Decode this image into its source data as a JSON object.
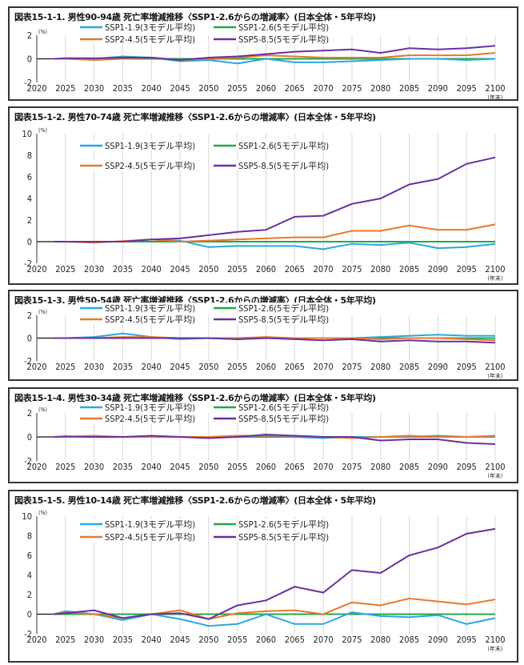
{
  "colors": {
    "SSP1-1.9": "#29a8e0",
    "SSP1-2.6": "#22a84a",
    "SSP2-4.5": "#e8782a",
    "SSP5-8.5": "#6b2fa0"
  },
  "legend_labels": [
    "SSP1-1.9(3モデル平均)",
    "SSP1-2.6(5モデル平均)",
    "SSP2-4.5(5モデル平均)",
    "SSP5-8.5(5モデル平均)"
  ],
  "y_unit": "(%)",
  "x_unit": "(年末)",
  "chart_data": [
    {
      "type": "line",
      "title": "図表15-1-1. 男性90-94歳 死亡率増減推移〈SSP1-2.6からの増減率〉(日本全体・5年平均)",
      "ylim": [
        -2,
        2
      ],
      "yticks": [
        -2,
        0,
        2
      ],
      "xlim": [
        2020,
        2100
      ],
      "xticks": [
        2020,
        2025,
        2030,
        2035,
        2040,
        2045,
        2050,
        2055,
        2060,
        2065,
        2070,
        2075,
        2080,
        2085,
        2090,
        2095,
        2100
      ],
      "grid": "vertical",
      "legend": "top",
      "x": [
        2023,
        2025,
        2030,
        2035,
        2040,
        2045,
        2050,
        2055,
        2060,
        2065,
        2070,
        2075,
        2080,
        2085,
        2090,
        2095,
        2100
      ],
      "series": [
        {
          "name": "SSP1-1.9(3モデル平均)",
          "values": [
            0,
            0,
            0,
            0.2,
            0.1,
            -0.2,
            -0.1,
            -0.4,
            0,
            -0.3,
            -0.3,
            -0.2,
            -0.1,
            0,
            0,
            -0.1,
            0
          ]
        },
        {
          "name": "SSP1-2.6(5モデル平均)",
          "values": [
            0,
            0,
            0,
            0,
            0,
            0,
            0,
            0,
            0,
            0,
            0,
            0,
            0,
            0,
            0,
            0,
            0
          ]
        },
        {
          "name": "SSP2-4.5(5モデル平均)",
          "values": [
            0,
            0,
            -0.1,
            0,
            0.1,
            -0.1,
            0,
            0.1,
            0.3,
            0.2,
            0.1,
            0.1,
            0.1,
            0.3,
            0.3,
            0.3,
            0.5
          ]
        },
        {
          "name": "SSP5-8.5(5モデル平均)",
          "values": [
            0,
            0.05,
            0.05,
            0.1,
            0.1,
            -0.1,
            0.1,
            0.2,
            0.4,
            0.6,
            0.7,
            0.8,
            0.5,
            0.9,
            0.8,
            0.9,
            1.1
          ]
        }
      ]
    },
    {
      "type": "line",
      "title": "図表15-1-2. 男性70-74歳 死亡率増減推移〈SSP1-2.6からの増減率〉(日本全体・5年平均)",
      "ylim": [
        -2,
        10
      ],
      "yticks": [
        -2,
        0,
        2,
        4,
        6,
        8,
        10
      ],
      "xlim": [
        2020,
        2100
      ],
      "xticks": [
        2020,
        2025,
        2030,
        2035,
        2040,
        2045,
        2050,
        2055,
        2060,
        2065,
        2070,
        2075,
        2080,
        2085,
        2090,
        2095,
        2100
      ],
      "grid": "vertical",
      "legend": "top-left",
      "x": [
        2023,
        2025,
        2030,
        2035,
        2040,
        2045,
        2050,
        2055,
        2060,
        2065,
        2070,
        2075,
        2080,
        2085,
        2090,
        2095,
        2100
      ],
      "series": [
        {
          "name": "SSP1-1.9(3モデル平均)",
          "values": [
            0,
            0,
            0,
            0,
            0.2,
            0.1,
            -0.5,
            -0.4,
            -0.4,
            -0.4,
            -0.7,
            -0.2,
            -0.3,
            -0.1,
            -0.6,
            -0.5,
            -0.2
          ]
        },
        {
          "name": "SSP1-2.6(5モデル平均)",
          "values": [
            0,
            0,
            0,
            0,
            0,
            0,
            0,
            0,
            0,
            0,
            0,
            0,
            0,
            0,
            0,
            0,
            0
          ]
        },
        {
          "name": "SSP2-4.5(5モデル平均)",
          "values": [
            0,
            0,
            -0.1,
            0.05,
            0.2,
            0,
            0.1,
            0.2,
            0.3,
            0.4,
            0.4,
            1.0,
            1.0,
            1.5,
            1.1,
            1.1,
            1.6
          ]
        },
        {
          "name": "SSP5-8.5(5モデル平均)",
          "values": [
            0,
            0,
            0,
            0,
            0.2,
            0.3,
            0.6,
            0.9,
            1.1,
            2.3,
            2.4,
            3.5,
            4.0,
            5.3,
            5.8,
            7.2,
            7.8
          ]
        }
      ]
    },
    {
      "type": "line",
      "title": "図表15-1-3. 男性50-54歳 死亡率増減推移〈SSP1-2.6からの増減率〉(日本全体・5年平均)",
      "ylim": [
        -2,
        2
      ],
      "yticks": [
        -2,
        0,
        2
      ],
      "xlim": [
        2020,
        2100
      ],
      "xticks": [
        2020,
        2025,
        2030,
        2035,
        2040,
        2045,
        2050,
        2055,
        2060,
        2065,
        2070,
        2075,
        2080,
        2085,
        2090,
        2095,
        2100
      ],
      "grid": "vertical",
      "legend": "top",
      "x": [
        2023,
        2025,
        2030,
        2035,
        2040,
        2045,
        2050,
        2055,
        2060,
        2065,
        2070,
        2075,
        2080,
        2085,
        2090,
        2095,
        2100
      ],
      "series": [
        {
          "name": "SSP1-1.9(3モデル平均)",
          "values": [
            0,
            0,
            0.1,
            0.4,
            0.1,
            -0.1,
            0,
            -0.1,
            0,
            0,
            0,
            0,
            0.1,
            0.2,
            0.3,
            0.2,
            0.2
          ]
        },
        {
          "name": "SSP1-2.6(5モデル平均)",
          "values": [
            0,
            0,
            0,
            0,
            0,
            0,
            0,
            0,
            0,
            0,
            0,
            0,
            0,
            0,
            0,
            0,
            0
          ]
        },
        {
          "name": "SSP2-4.5(5モデル平均)",
          "values": [
            0,
            0,
            0,
            0.1,
            0.1,
            0,
            0,
            0,
            0.1,
            0,
            0,
            0,
            -0.1,
            0,
            0,
            -0.1,
            -0.2
          ]
        },
        {
          "name": "SSP5-8.5(5モデル平均)",
          "values": [
            0,
            0,
            0,
            0,
            0,
            0,
            0,
            -0.1,
            0,
            -0.1,
            -0.2,
            -0.1,
            -0.3,
            -0.2,
            -0.3,
            -0.3,
            -0.4
          ]
        }
      ]
    },
    {
      "type": "line",
      "title": "図表15-1-4. 男性30-34歳 死亡率増減推移〈SSP1-2.6からの増減率〉(日本全体・5年平均)",
      "ylim": [
        -2,
        2
      ],
      "yticks": [
        -2,
        0,
        2
      ],
      "xlim": [
        2020,
        2100
      ],
      "xticks": [
        2020,
        2025,
        2030,
        2035,
        2040,
        2045,
        2050,
        2055,
        2060,
        2065,
        2070,
        2075,
        2080,
        2085,
        2090,
        2095,
        2100
      ],
      "grid": "vertical",
      "legend": "top",
      "x": [
        2023,
        2025,
        2030,
        2035,
        2040,
        2045,
        2050,
        2055,
        2060,
        2065,
        2070,
        2075,
        2080,
        2085,
        2090,
        2095,
        2100
      ],
      "series": [
        {
          "name": "SSP1-1.9(3モデル平均)",
          "values": [
            0,
            0,
            0,
            0,
            0,
            0,
            0,
            0,
            0.1,
            0,
            -0.1,
            0,
            0,
            0,
            0.1,
            0,
            0
          ]
        },
        {
          "name": "SSP1-2.6(5モデル平均)",
          "values": [
            0,
            0,
            0,
            0,
            0,
            0,
            0,
            0,
            0,
            0,
            0,
            0,
            0,
            0,
            0,
            0,
            0
          ]
        },
        {
          "name": "SSP2-4.5(5モデル平均)",
          "values": [
            0,
            0,
            0.1,
            0,
            0,
            0,
            0,
            0.1,
            0.1,
            0.1,
            0,
            -0.1,
            0,
            0.1,
            0,
            0,
            0.1
          ]
        },
        {
          "name": "SSP5-8.5(5モデル平均)",
          "values": [
            0,
            0.05,
            0,
            0,
            0.1,
            0,
            -0.1,
            0,
            0.2,
            0.1,
            0,
            0,
            -0.3,
            -0.2,
            -0.2,
            -0.5,
            -0.6
          ]
        }
      ]
    },
    {
      "type": "line",
      "title": "図表15-1-5. 男性10-14歳 死亡率増減推移〈SSP1-2.6からの増減率〉(日本全体・5年平均)",
      "ylim": [
        -2,
        10
      ],
      "yticks": [
        -2,
        0,
        2,
        4,
        6,
        8,
        10
      ],
      "xlim": [
        2020,
        2100
      ],
      "xticks": [
        2020,
        2025,
        2030,
        2035,
        2040,
        2045,
        2050,
        2055,
        2060,
        2065,
        2070,
        2075,
        2080,
        2085,
        2090,
        2095,
        2100
      ],
      "grid": "vertical",
      "legend": "top-left",
      "x": [
        2023,
        2025,
        2030,
        2035,
        2040,
        2045,
        2050,
        2055,
        2060,
        2065,
        2070,
        2075,
        2080,
        2085,
        2090,
        2095,
        2100
      ],
      "series": [
        {
          "name": "SSP1-1.9(3モデル平均)",
          "values": [
            0,
            0.3,
            0,
            -0.6,
            0,
            -0.5,
            -1.2,
            -1.0,
            0,
            -1.0,
            -1.0,
            0.2,
            -0.2,
            -0.3,
            -0.1,
            -1.0,
            -0.4
          ]
        },
        {
          "name": "SSP1-2.6(5モデル平均)",
          "values": [
            0,
            0,
            0,
            0,
            0,
            0,
            0,
            0,
            0,
            0,
            0,
            0,
            0,
            0,
            0,
            0,
            0
          ]
        },
        {
          "name": "SSP2-4.5(5モデル平均)",
          "values": [
            0,
            0.2,
            0,
            -0.4,
            0,
            0.4,
            -0.5,
            0.1,
            0.3,
            0.4,
            0,
            1.2,
            0.9,
            1.6,
            1.3,
            1.0,
            1.5
          ]
        },
        {
          "name": "SSP5-8.5(5モデル平均)",
          "values": [
            0,
            0.1,
            0.4,
            -0.4,
            0,
            0.1,
            -0.5,
            0.9,
            1.4,
            2.8,
            2.2,
            4.5,
            4.2,
            6.0,
            6.8,
            8.2,
            8.7
          ]
        }
      ]
    }
  ]
}
